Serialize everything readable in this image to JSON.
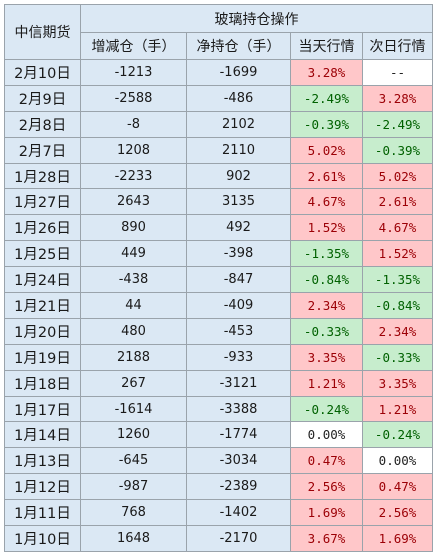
{
  "header": {
    "corner_label": "中信期货",
    "group_label": "玻璃持仓操作",
    "columns": [
      "增减仓（手）",
      "净持仓（手）",
      "当天行情",
      "次日行情"
    ]
  },
  "colors": {
    "up_bg": "#ffc7c9",
    "up_text": "#9c0006",
    "down_bg": "#c7edcd",
    "down_text": "#006100",
    "header_bg": "#dbe8f4"
  },
  "rows": [
    {
      "date": "2月10日",
      "change": "-1213",
      "net": "-1699",
      "today": "3.28%",
      "today_state": "up",
      "next": "--",
      "next_state": "flat"
    },
    {
      "date": "2月9日",
      "change": "-2588",
      "net": "-486",
      "today": "-2.49%",
      "today_state": "down",
      "next": "3.28%",
      "next_state": "up"
    },
    {
      "date": "2月8日",
      "change": "-8",
      "net": "2102",
      "today": "-0.39%",
      "today_state": "down",
      "next": "-2.49%",
      "next_state": "down"
    },
    {
      "date": "2月7日",
      "change": "1208",
      "net": "2110",
      "today": "5.02%",
      "today_state": "up",
      "next": "-0.39%",
      "next_state": "down"
    },
    {
      "date": "1月28日",
      "change": "-2233",
      "net": "902",
      "today": "2.61%",
      "today_state": "up",
      "next": "5.02%",
      "next_state": "up"
    },
    {
      "date": "1月27日",
      "change": "2643",
      "net": "3135",
      "today": "4.67%",
      "today_state": "up",
      "next": "2.61%",
      "next_state": "up"
    },
    {
      "date": "1月26日",
      "change": "890",
      "net": "492",
      "today": "1.52%",
      "today_state": "up",
      "next": "4.67%",
      "next_state": "up"
    },
    {
      "date": "1月25日",
      "change": "449",
      "net": "-398",
      "today": "-1.35%",
      "today_state": "down",
      "next": "1.52%",
      "next_state": "up"
    },
    {
      "date": "1月24日",
      "change": "-438",
      "net": "-847",
      "today": "-0.84%",
      "today_state": "down",
      "next": "-1.35%",
      "next_state": "down"
    },
    {
      "date": "1月21日",
      "change": "44",
      "net": "-409",
      "today": "2.34%",
      "today_state": "up",
      "next": "-0.84%",
      "next_state": "down"
    },
    {
      "date": "1月20日",
      "change": "480",
      "net": "-453",
      "today": "-0.33%",
      "today_state": "down",
      "next": "2.34%",
      "next_state": "up"
    },
    {
      "date": "1月19日",
      "change": "2188",
      "net": "-933",
      "today": "3.35%",
      "today_state": "up",
      "next": "-0.33%",
      "next_state": "down"
    },
    {
      "date": "1月18日",
      "change": "267",
      "net": "-3121",
      "today": "1.21%",
      "today_state": "up",
      "next": "3.35%",
      "next_state": "up"
    },
    {
      "date": "1月17日",
      "change": "-1614",
      "net": "-3388",
      "today": "-0.24%",
      "today_state": "down",
      "next": "1.21%",
      "next_state": "up"
    },
    {
      "date": "1月14日",
      "change": "1260",
      "net": "-1774",
      "today": "0.00%",
      "today_state": "flat",
      "next": "-0.24%",
      "next_state": "down"
    },
    {
      "date": "1月13日",
      "change": "-645",
      "net": "-3034",
      "today": "0.47%",
      "today_state": "up",
      "next": "0.00%",
      "next_state": "flat"
    },
    {
      "date": "1月12日",
      "change": "-987",
      "net": "-2389",
      "today": "2.56%",
      "today_state": "up",
      "next": "0.47%",
      "next_state": "up"
    },
    {
      "date": "1月11日",
      "change": "768",
      "net": "-1402",
      "today": "1.69%",
      "today_state": "up",
      "next": "2.56%",
      "next_state": "up"
    },
    {
      "date": "1月10日",
      "change": "1648",
      "net": "-2170",
      "today": "3.67%",
      "today_state": "up",
      "next": "1.69%",
      "next_state": "up"
    }
  ]
}
